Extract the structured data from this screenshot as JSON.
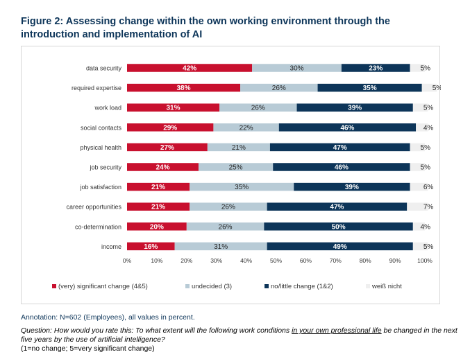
{
  "figure": {
    "title": "Figure 2: Assessing change within the own working environment through the introduction and implementation of AI"
  },
  "notes": {
    "annotation": "Annotation: N=602 (Employees), all values in percent.",
    "question_before": "Question: How would you rate this: To what extent will the following work conditions ",
    "question_underlined": "in your own professional life",
    "question_after": " be changed in the next five years by the use of artificial intelligence?",
    "scale": "(1=no change; 5=very significant change)"
  },
  "colors": {
    "significant": "#c8102e",
    "undecided": "#b8cbd6",
    "no_change": "#0d3559",
    "dont_know": "#efefef"
  },
  "chart_data": {
    "type": "bar",
    "orientation": "horizontal",
    "stacked": true,
    "categories": [
      "data security",
      "required expertise",
      "work load",
      "social contacts",
      "physical health",
      "job security",
      "job satisfaction",
      "career opportunities",
      "co-determination",
      "income"
    ],
    "series": [
      {
        "name": "(very) significant change (4&5)",
        "values": [
          42,
          38,
          31,
          29,
          27,
          24,
          21,
          21,
          20,
          16
        ],
        "labels": [
          "42%",
          "38%",
          "31%",
          "29%",
          "27%",
          "24%",
          "21%",
          "21%",
          "20%",
          "16%"
        ]
      },
      {
        "name": "undecided (3)",
        "values": [
          30,
          26,
          26,
          22,
          21,
          25,
          35,
          26,
          26,
          31
        ],
        "labels": [
          "30%",
          "26%",
          "26%",
          "22%",
          "21%",
          "25%",
          "35%",
          "26%",
          "26%",
          "31%"
        ]
      },
      {
        "name": "no/little change (1&2)",
        "values": [
          23,
          35,
          39,
          46,
          47,
          46,
          39,
          47,
          50,
          49
        ],
        "labels": [
          "23%",
          "35%",
          "39%",
          "46%",
          "47%",
          "46%",
          "39%",
          "47%",
          "50%",
          "49%"
        ]
      },
      {
        "name": "weiß nicht",
        "values": [
          5,
          5,
          5,
          4,
          5,
          5,
          6,
          7,
          4,
          5
        ],
        "labels": [
          "5%",
          "5%",
          "5%",
          "4%",
          "5%",
          "5%",
          "6%",
          "7%",
          "4%",
          "5%"
        ]
      }
    ],
    "xlim": [
      0,
      100
    ],
    "xticks": [
      "0%",
      "10%",
      "20%",
      "30%",
      "40%",
      "50%",
      "60%",
      "70%",
      "80%",
      "90%",
      "100%"
    ],
    "grid": false,
    "legend": "bottom"
  }
}
